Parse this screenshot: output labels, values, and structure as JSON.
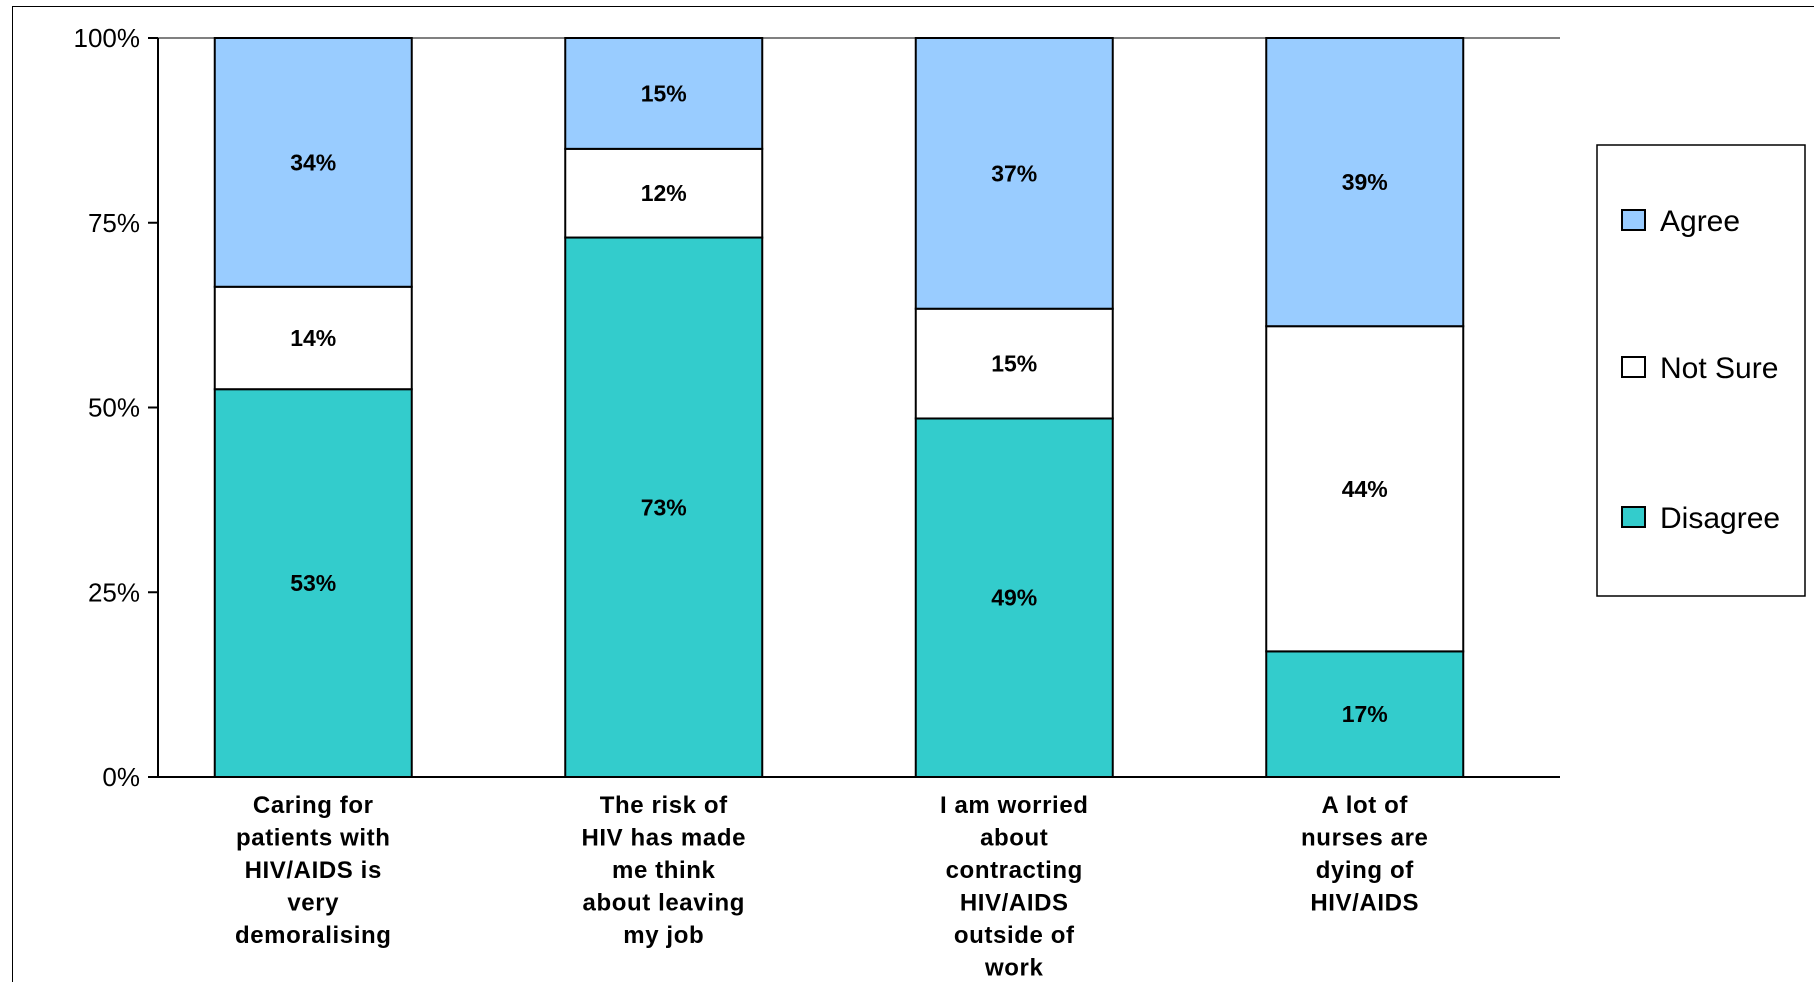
{
  "chart_data": {
    "type": "bar",
    "stacked": true,
    "percent": true,
    "categories": [
      "Caring for patients with HIV/AIDS is very demoralising",
      "The risk of HIV has made me think about leaving my job",
      "I am worried about contracting HIV/AIDS outside of work",
      "A lot of nurses are dying of HIV/AIDS"
    ],
    "category_lines": [
      [
        "Caring for",
        "patients with",
        "HIV/AIDS is",
        "very",
        "demoralising"
      ],
      [
        "The risk of",
        "HIV has made",
        "me think",
        "about leaving",
        "my job"
      ],
      [
        "I am worried",
        "about",
        "contracting",
        "HIV/AIDS",
        "outside of",
        "work"
      ],
      [
        "A lot of",
        "nurses are",
        "dying of",
        "HIV/AIDS"
      ]
    ],
    "series": [
      {
        "name": "Disagree",
        "color": "#33cccc",
        "values": [
          53,
          73,
          49,
          17
        ],
        "labels": [
          "53%",
          "73%",
          "49%",
          "17%"
        ]
      },
      {
        "name": "Not Sure",
        "color": "#ffffff",
        "values": [
          14,
          12,
          15,
          44
        ],
        "labels": [
          "14%",
          "12%",
          "15%",
          "44%"
        ]
      },
      {
        "name": "Agree",
        "color": "#99ccff",
        "values": [
          34,
          15,
          37,
          39
        ],
        "labels": [
          "34%",
          "15%",
          "37%",
          "39%"
        ]
      }
    ],
    "yticks": [
      "0%",
      "25%",
      "50%",
      "75%",
      "100%"
    ],
    "ylim": [
      0,
      100
    ],
    "legend_order": [
      "Agree",
      "Not Sure",
      "Disagree"
    ],
    "legend_position": "right",
    "title": "",
    "xlabel": "",
    "ylabel": ""
  }
}
